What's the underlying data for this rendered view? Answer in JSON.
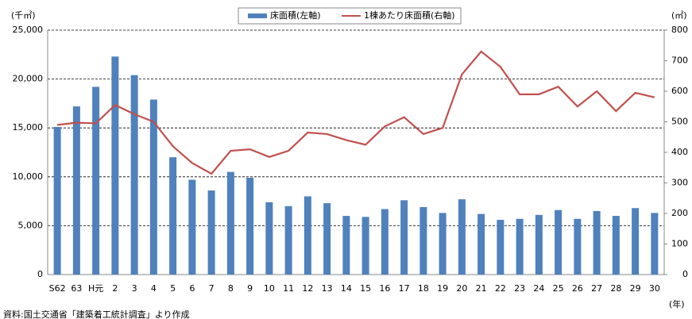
{
  "chart_data": {
    "type": "bar_line",
    "y_unit": "(千㎡)",
    "y2_unit": "(㎡)",
    "x_unit": "(年)",
    "source": "資料:国土交通省「建築着工統計調査」より作成",
    "categories": [
      "S62",
      "63",
      "H元",
      "2",
      "3",
      "4",
      "5",
      "6",
      "7",
      "8",
      "9",
      "10",
      "11",
      "12",
      "13",
      "14",
      "15",
      "16",
      "17",
      "18",
      "19",
      "20",
      "21",
      "22",
      "23",
      "24",
      "25",
      "26",
      "27",
      "28",
      "29",
      "30"
    ],
    "series": [
      {
        "name": "床面積(左軸)",
        "type": "bar",
        "color": "#4f81bd",
        "values": [
          15100,
          17200,
          19200,
          22300,
          20400,
          17900,
          12000,
          9700,
          8600,
          10500,
          9900,
          7400,
          7000,
          8000,
          7300,
          6000,
          5900,
          6700,
          7600,
          6900,
          6300,
          7700,
          6200,
          5600,
          5700,
          6100,
          6600,
          5700,
          6500,
          6000,
          6800,
          6300
        ]
      },
      {
        "name": "1棟あたり床面積(右軸)",
        "type": "line",
        "axis": "y2",
        "color": "#c0504d",
        "values": [
          490,
          497,
          495,
          555,
          525,
          500,
          420,
          365,
          330,
          405,
          410,
          385,
          405,
          465,
          460,
          440,
          425,
          485,
          515,
          460,
          480,
          655,
          730,
          680,
          590,
          590,
          615,
          550,
          600,
          535,
          595,
          580
        ]
      }
    ],
    "ylim": [
      0,
      25000
    ],
    "yticks": [
      0,
      {
        "value": 5000,
        "label": "5,000"
      },
      {
        "value": 10000,
        "label": "10,000"
      },
      {
        "value": 15000,
        "label": "15,000"
      },
      {
        "value": 20000,
        "label": "20,000"
      },
      {
        "value": 25000,
        "label": "25,000"
      }
    ],
    "y2lim": [
      0,
      800
    ],
    "y2ticks": [
      0,
      100,
      200,
      300,
      400,
      500,
      600,
      700,
      800
    ],
    "grid": true
  }
}
